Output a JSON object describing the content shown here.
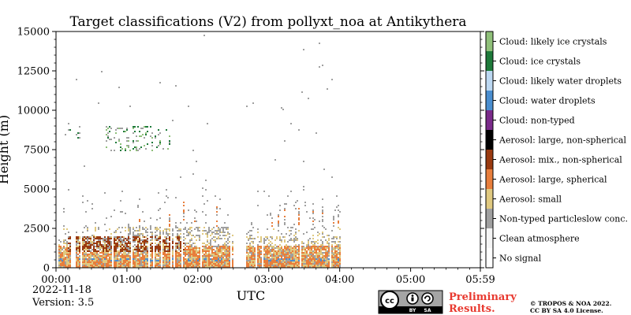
{
  "chart_data": {
    "type": "heatmap",
    "title": "Target classifications (V2) from pollyxt_noa at Antikythera",
    "xlabel": "UTC",
    "ylabel": "Height (m)",
    "x_ticks": [
      "00:00",
      "01:00",
      "02:00",
      "03:00",
      "04:00",
      "05:00",
      "05:59"
    ],
    "x_range_hours": [
      0,
      5.983
    ],
    "y_ticks": [
      0,
      2500,
      5000,
      7500,
      10000,
      12500,
      15000
    ],
    "y_ticks_labels": [
      "0",
      "2500",
      "5000",
      "7500",
      "10000",
      "12500",
      "15000"
    ],
    "ylim": [
      0,
      15000
    ],
    "legend_position": "right colorbar",
    "classes": [
      {
        "name": "No signal",
        "color": "#ffffff"
      },
      {
        "name": "Clean atmosphere",
        "color": "#f5f5f5"
      },
      {
        "name": "Non-typed particleslow conc.",
        "color": "#a0a0a0"
      },
      {
        "name": "Aerosol: small",
        "color": "#e0c980"
      },
      {
        "name": "Aerosol: large, spherical",
        "color": "#e87e3c"
      },
      {
        "name": "Aerosol: mix., non-spherical",
        "color": "#9a3a10"
      },
      {
        "name": "Aerosol: large, non-spherical",
        "color": "#000000"
      },
      {
        "name": "Cloud: non-typed",
        "color": "#7a2a8a"
      },
      {
        "name": "Cloud: water droplets",
        "color": "#4a8ed0"
      },
      {
        "name": "Cloud: likely water droplets",
        "color": "#bcd8f2"
      },
      {
        "name": "Cloud: ice crystals",
        "color": "#1e7a3a"
      },
      {
        "name": "Cloud: likely ice crystals",
        "color": "#8fc07a"
      }
    ],
    "data_segments": [
      {
        "start_hour": 0.0,
        "end_hour": 2.5
      },
      {
        "start_hour": 2.67,
        "end_hour": 4.0
      }
    ],
    "features": [
      {
        "class": "Aerosol: large, spherical",
        "start_hour": 0.1,
        "end_hour": 4.0,
        "top_m": 1500
      },
      {
        "class": "Aerosol: mix., non-spherical",
        "start_hour": 0.15,
        "end_hour": 1.8,
        "top_m": 2000
      },
      {
        "class": "Non-typed particleslow conc.",
        "start_hour": 1.0,
        "end_hour": 2.5,
        "top_m": 2600
      },
      {
        "class": "Cloud: ice crystals",
        "start_hour": 0.75,
        "end_hour": 1.55,
        "bottom_m": 7500,
        "top_m": 8800
      },
      {
        "class": "Cloud: water droplets",
        "start_hour": 0.05,
        "end_hour": 4.0,
        "bottom_m": 500,
        "top_m": 700
      }
    ]
  },
  "footer": {
    "date": "2022-11-18",
    "version": "Version: 3.5",
    "preliminary_line1": "Preliminary",
    "preliminary_line2": "Results.",
    "copyright_line1": "© TROPOS & NOA 2022.",
    "copyright_line2": "CC BY SA 4.0 License.",
    "cc_badge": {
      "icons": [
        "cc-icon",
        "by-icon",
        "sa-icon"
      ],
      "labels": [
        "BY",
        "SA"
      ]
    }
  }
}
